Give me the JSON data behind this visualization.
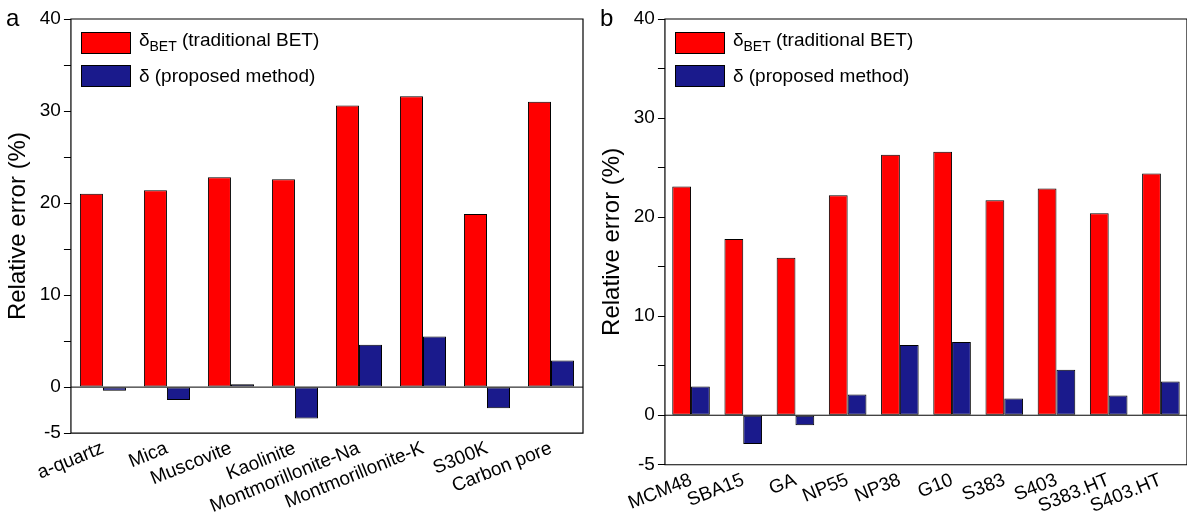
{
  "chart_data": [
    {
      "type": "bar",
      "annotations": [
        "a"
      ],
      "ylabel": "Relative error (%)",
      "legend": "top left",
      "grid": false,
      "categories": [
        "a-quartz",
        "Mica",
        "Muscovite",
        "Kaolinite",
        "Montmorillonite-Na",
        "Montmorillonite-K",
        "S300K",
        "Carbon pore"
      ],
      "series": [
        {
          "name": "δ$_{BET}$ (traditional BET)",
          "color": "#ff0000",
          "values": [
            21.0,
            21.4,
            22.8,
            22.6,
            30.6,
            31.6,
            18.8,
            31.0
          ]
        },
        {
          "name": "δ (proposed method)",
          "color": "#1a1a8c",
          "values": [
            -0.4,
            -1.4,
            0.3,
            -3.4,
            4.6,
            5.5,
            -2.3,
            2.9
          ]
        }
      ],
      "ylim": [
        -5,
        40
      ],
      "yticks": [
        -5,
        0,
        {
          "value": 5,
          "label": null
        },
        10,
        {
          "value": 15,
          "label": null
        },
        20,
        {
          "value": 25,
          "label": null
        },
        30,
        {
          "value": 35,
          "label": null
        },
        40
      ],
      "ref_lines": [
        {
          "axis": "y",
          "value": 0
        }
      ]
    },
    {
      "type": "bar",
      "annotations": [
        "b"
      ],
      "ylabel": "Relative error (%)",
      "legend": "top left",
      "grid": false,
      "categories": [
        "MCM48",
        "SBA15",
        "GA",
        "NP55",
        "NP38",
        "G10",
        "S383",
        "S403",
        "S383.HT",
        "S403.HT"
      ],
      "series": [
        {
          "name": "δ$_{BET}$ (traditional BET)",
          "color": "#ff0000",
          "values": [
            23.1,
            17.8,
            15.9,
            22.2,
            26.3,
            26.6,
            21.7,
            22.9,
            20.4,
            24.4
          ]
        },
        {
          "name": "δ (proposed method)",
          "color": "#1a1a8c",
          "values": [
            2.9,
            -2.9,
            -1.0,
            2.1,
            7.1,
            7.4,
            1.7,
            4.6,
            2.0,
            3.4
          ]
        }
      ],
      "ylim": [
        -5,
        40
      ],
      "yticks": [
        -5,
        0,
        {
          "value": 5,
          "label": null
        },
        10,
        {
          "value": 15,
          "label": null
        },
        20,
        {
          "value": 25,
          "label": null
        },
        30,
        {
          "value": 35,
          "label": null
        },
        40
      ],
      "ref_lines": [
        {
          "axis": "y",
          "value": 0
        }
      ]
    }
  ]
}
